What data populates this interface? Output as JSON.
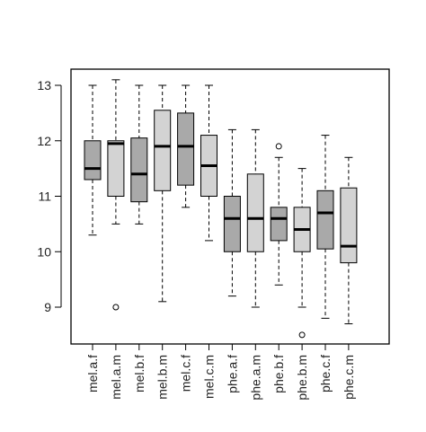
{
  "chart_data": {
    "type": "boxplot",
    "title": "",
    "xlabel": "",
    "ylabel": "",
    "ylim": [
      8.4,
      13.2
    ],
    "yticks": [
      9,
      10,
      11,
      12,
      13
    ],
    "ytick_labels": [
      "9",
      "10",
      "11",
      "12",
      "13"
    ],
    "grid": false,
    "colors": {
      "dark": "#a9a9a9",
      "light": "#d3d3d3",
      "line": "#000000"
    },
    "boxes": [
      {
        "label": "mel.a.f",
        "fill": "dark",
        "whisker_low": 10.3,
        "q1": 11.3,
        "median": 11.5,
        "q3": 12.0,
        "whisker_high": 13.0,
        "outliers": []
      },
      {
        "label": "mel.a.m",
        "fill": "light",
        "whisker_low": 10.5,
        "q1": 11.0,
        "median": 11.95,
        "q3": 12.0,
        "whisker_high": 13.1,
        "outliers": [
          9.0
        ]
      },
      {
        "label": "mel.b.f",
        "fill": "dark",
        "whisker_low": 10.5,
        "q1": 10.9,
        "median": 11.4,
        "q3": 12.05,
        "whisker_high": 13.0,
        "outliers": []
      },
      {
        "label": "mel.b.m",
        "fill": "light",
        "whisker_low": 9.1,
        "q1": 11.1,
        "median": 11.9,
        "q3": 12.55,
        "whisker_high": 13.0,
        "outliers": []
      },
      {
        "label": "mel.c.f",
        "fill": "dark",
        "whisker_low": 10.8,
        "q1": 11.2,
        "median": 11.9,
        "q3": 12.5,
        "whisker_high": 13.0,
        "outliers": []
      },
      {
        "label": "mel.c.m",
        "fill": "light",
        "whisker_low": 10.2,
        "q1": 11.0,
        "median": 11.55,
        "q3": 12.1,
        "whisker_high": 13.0,
        "outliers": []
      },
      {
        "label": "phe.a.f",
        "fill": "dark",
        "whisker_low": 9.2,
        "q1": 10.0,
        "median": 10.6,
        "q3": 11.0,
        "whisker_high": 12.2,
        "outliers": []
      },
      {
        "label": "phe.a.m",
        "fill": "light",
        "whisker_low": 9.0,
        "q1": 10.0,
        "median": 10.6,
        "q3": 11.4,
        "whisker_high": 12.2,
        "outliers": []
      },
      {
        "label": "phe.b.f",
        "fill": "dark",
        "whisker_low": 9.4,
        "q1": 10.2,
        "median": 10.6,
        "q3": 10.8,
        "whisker_high": 11.7,
        "outliers": [
          11.9
        ]
      },
      {
        "label": "phe.b.m",
        "fill": "light",
        "whisker_low": 9.0,
        "q1": 10.0,
        "median": 10.4,
        "q3": 10.8,
        "whisker_high": 11.5,
        "outliers": [
          8.5
        ]
      },
      {
        "label": "phe.c.f",
        "fill": "dark",
        "whisker_low": 8.8,
        "q1": 10.05,
        "median": 10.7,
        "q3": 11.1,
        "whisker_high": 12.1,
        "outliers": []
      },
      {
        "label": "phe.c.m",
        "fill": "light",
        "whisker_low": 8.7,
        "q1": 9.8,
        "median": 10.1,
        "q3": 11.15,
        "whisker_high": 11.7,
        "outliers": []
      }
    ]
  }
}
